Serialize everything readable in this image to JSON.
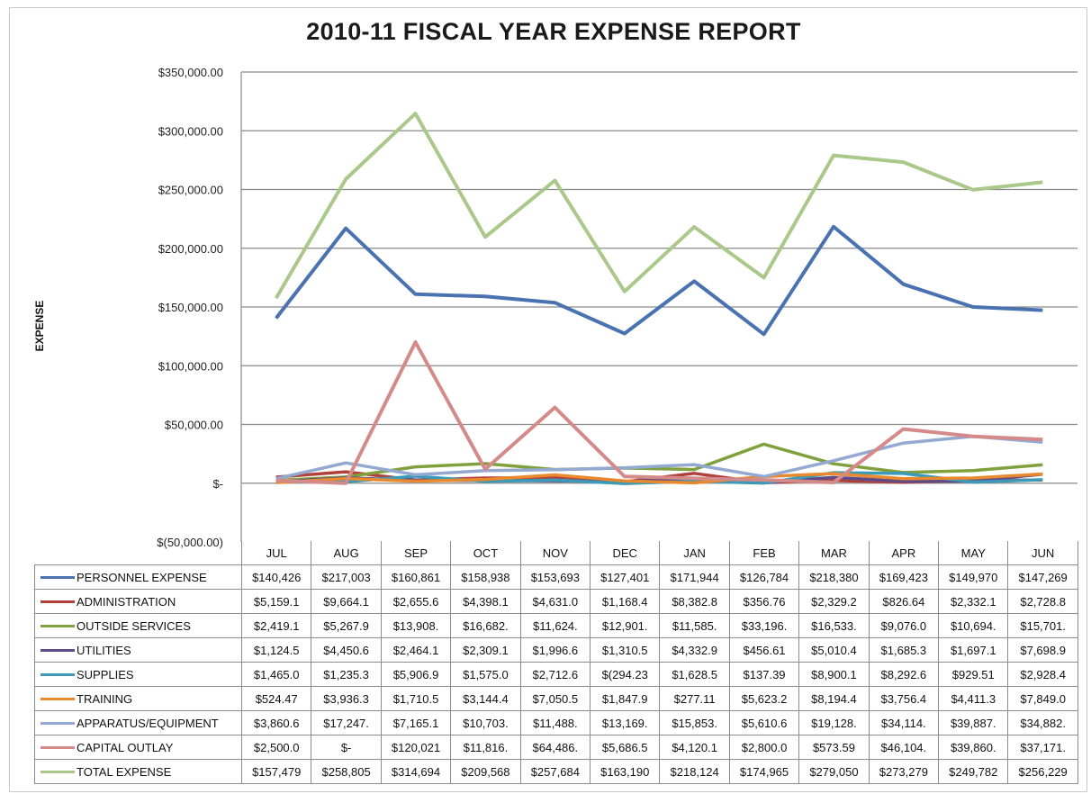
{
  "chart_data": {
    "type": "line",
    "title": "2010-11 FISCAL YEAR EXPENSE REPORT",
    "ylabel": "EXPENSE",
    "xlabel": "",
    "ylim": [
      -50000,
      350000
    ],
    "ytick_values": [
      -50000,
      0,
      50000,
      100000,
      150000,
      200000,
      250000,
      300000,
      350000
    ],
    "ytick_labels": [
      "$(50,000.00)",
      "$-",
      "$50,000.00",
      "$100,000.00",
      "$150,000.00",
      "$200,000.00",
      "$250,000.00",
      "$300,000.00",
      "$350,000.00"
    ],
    "grid": true,
    "legend": "data-table",
    "categories": [
      "JUL",
      "AUG",
      "SEP",
      "OCT",
      "NOV",
      "DEC",
      "JAN",
      "FEB",
      "MAR",
      "APR",
      "MAY",
      "JUN"
    ],
    "series": [
      {
        "name": "PERSONNEL EXPENSE",
        "color": "#4a72b0",
        "values": [
          140426,
          217003,
          160861,
          158938,
          153693,
          127401,
          171944,
          126784,
          218380,
          169423,
          149970,
          147269
        ],
        "labels": [
          "$140,426",
          "$217,003",
          "$160,861",
          "$158,938",
          "$153,693",
          "$127,401",
          "$171,944",
          "$126,784",
          "$218,380",
          "$169,423",
          "$149,970",
          "$147,269"
        ]
      },
      {
        "name": "ADMINISTRATION",
        "color": "#b0403c",
        "values": [
          5159.1,
          9664.1,
          2655.6,
          4398.1,
          4631.0,
          1168.4,
          8382.8,
          356.76,
          2329.2,
          826.64,
          2332.1,
          2728.8
        ],
        "labels": [
          "$5,159.1",
          "$9,664.1",
          "$2,655.6",
          "$4,398.1",
          "$4,631.0",
          "$1,168.4",
          "$8,382.8",
          "$356.76",
          "$2,329.2",
          "$826.64",
          "$2,332.1",
          "$2,728.8"
        ]
      },
      {
        "name": "OUTSIDE SERVICES",
        "color": "#7fa03c",
        "values": [
          2419.1,
          5267.9,
          13908,
          16682,
          11624,
          12901,
          11585,
          33196,
          16533,
          9076.0,
          10694,
          15701
        ],
        "labels": [
          "$2,419.1",
          "$5,267.9",
          "$13,908.",
          "$16,682.",
          "$11,624.",
          "$12,901.",
          "$11,585.",
          "$33,196.",
          "$16,533.",
          "$9,076.0",
          "$10,694.",
          "$15,701."
        ]
      },
      {
        "name": "UTILITIES",
        "color": "#5e4a86",
        "values": [
          1124.5,
          4450.6,
          2464.1,
          2309.1,
          1996.6,
          1310.5,
          4332.9,
          456.61,
          5010.4,
          1685.3,
          1697.1,
          7698.9
        ],
        "labels": [
          "$1,124.5",
          "$4,450.6",
          "$2,464.1",
          "$2,309.1",
          "$1,996.6",
          "$1,310.5",
          "$4,332.9",
          "$456.61",
          "$5,010.4",
          "$1,685.3",
          "$1,697.1",
          "$7,698.9"
        ]
      },
      {
        "name": "SUPPLIES",
        "color": "#3a9ab8",
        "values": [
          1465.0,
          1235.3,
          5906.9,
          1575.0,
          2712.6,
          -294.23,
          1628.5,
          137.39,
          8900.1,
          8292.6,
          929.51,
          2928.4
        ],
        "labels": [
          "$1,465.0",
          "$1,235.3",
          "$5,906.9",
          "$1,575.0",
          "$2,712.6",
          "$(294.23",
          "$1,628.5",
          "$137.39",
          "$8,900.1",
          "$8,292.6",
          "$929.51",
          "$2,928.4"
        ]
      },
      {
        "name": "TRAINING",
        "color": "#e8892e",
        "values": [
          524.47,
          3936.3,
          1710.5,
          3144.4,
          7050.5,
          1847.9,
          277.11,
          5623.2,
          8194.4,
          3756.4,
          4411.3,
          7849.0
        ],
        "labels": [
          "$524.47",
          "$3,936.3",
          "$1,710.5",
          "$3,144.4",
          "$7,050.5",
          "$1,847.9",
          "$277.11",
          "$5,623.2",
          "$8,194.4",
          "$3,756.4",
          "$4,411.3",
          "$7,849.0"
        ]
      },
      {
        "name": "APPARATUS/EQUIPMENT",
        "color": "#93a9d1",
        "values": [
          3860.6,
          17247,
          7165.1,
          10703,
          11488,
          13169,
          15853,
          5610.6,
          19128,
          34114,
          39887,
          34882
        ],
        "labels": [
          "$3,860.6",
          "$17,247.",
          "$7,165.1",
          "$10,703.",
          "$11,488.",
          "$13,169.",
          "$15,853.",
          "$5,610.6",
          "$19,128.",
          "$34,114.",
          "$39,887.",
          "$34,882."
        ]
      },
      {
        "name": "CAPITAL OUTLAY",
        "color": "#d48a88",
        "values": [
          2500.0,
          0,
          120021,
          11816,
          64486,
          5686.5,
          4120.1,
          2800.0,
          573.59,
          46104,
          39860,
          37171
        ],
        "labels": [
          "$2,500.0",
          "$-",
          "$120,021",
          "$11,816.",
          "$64,486.",
          "$5,686.5",
          "$4,120.1",
          "$2,800.0",
          "$573.59",
          "$46,104.",
          "$39,860.",
          "$37,171."
        ]
      },
      {
        "name": "TOTAL EXPENSE",
        "color": "#a9c88a",
        "values": [
          157479,
          258805,
          314694,
          209568,
          257684,
          163190,
          218124,
          174965,
          279050,
          273279,
          249782,
          256229
        ],
        "labels": [
          "$157,479",
          "$258,805",
          "$314,694",
          "$209,568",
          "$257,684",
          "$163,190",
          "$218,124",
          "$174,965",
          "$279,050",
          "$273,279",
          "$249,782",
          "$256,229"
        ]
      }
    ]
  }
}
